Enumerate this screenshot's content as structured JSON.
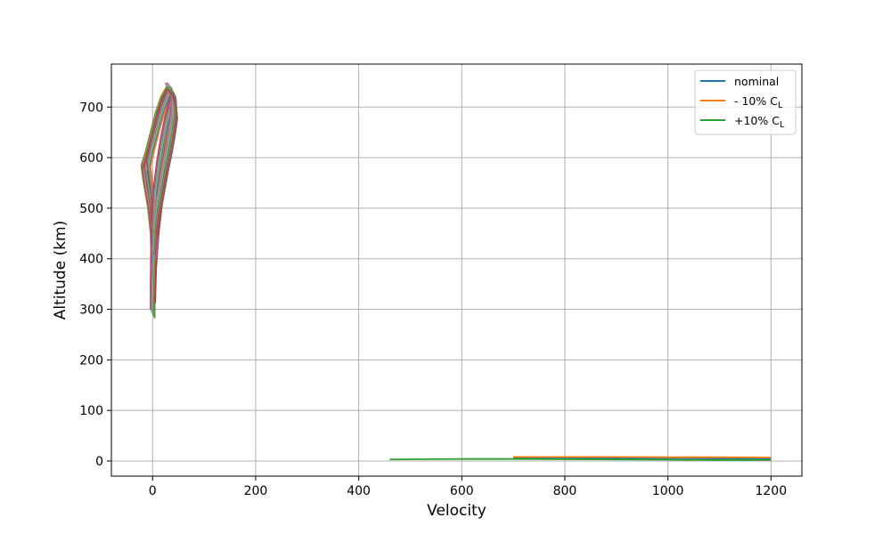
{
  "chart_data": {
    "type": "line",
    "xlabel": "Velocity",
    "ylabel": "Altitude (km)",
    "xlim": [
      -80,
      1260
    ],
    "ylim": [
      -30,
      785
    ],
    "xticks": [
      0,
      200,
      400,
      600,
      800,
      1000,
      1200
    ],
    "yticks": [
      0,
      100,
      200,
      300,
      400,
      500,
      600,
      700
    ],
    "grid": true,
    "legend_position": "top-right",
    "legend": [
      {
        "label": "nominal",
        "sub": "",
        "color": "#1f77b4"
      },
      {
        "label": "- 10% C",
        "sub": "L",
        "color": "#ff7f0e"
      },
      {
        "label": "+10% C",
        "sub": "L",
        "color": "#2ca02c"
      }
    ],
    "series": [
      {
        "name": "nominal",
        "color": "#1f77b4",
        "x": [
          700,
          800,
          900,
          1000,
          1100,
          1200
        ],
        "y": [
          6,
          6,
          5.5,
          5.5,
          5,
          5
        ]
      },
      {
        "name": "- 10% C_L",
        "color": "#ff7f0e",
        "x": [
          700,
          800,
          900,
          1000,
          1100,
          1200
        ],
        "y": [
          8,
          8,
          8,
          7.5,
          7.5,
          7
        ]
      },
      {
        "name": "+10% C_L",
        "color": "#2ca02c",
        "x": [
          460,
          500,
          600,
          700,
          800,
          900,
          1000,
          1100,
          1200
        ],
        "y": [
          3,
          3.5,
          4,
          4,
          3.5,
          3,
          2.5,
          2,
          2
        ]
      }
    ],
    "trajectory_cluster": {
      "colors": [
        "#1f77b4",
        "#ff7f0e",
        "#2ca02c",
        "#d62728",
        "#9467bd",
        "#8c564b",
        "#e377c2",
        "#7f7f7f",
        "#bcbd22",
        "#17becf"
      ],
      "curves": [
        {
          "x": [
            2,
            0,
            -5,
            -15,
            -18,
            -10,
            0,
            10,
            20,
            28
          ],
          "y": [
            400,
            450,
            500,
            560,
            585,
            610,
            650,
            690,
            720,
            735
          ]
        },
        {
          "x": [
            3,
            2,
            -2,
            -10,
            -14,
            -6,
            4,
            14,
            24,
            32
          ],
          "y": [
            430,
            470,
            510,
            565,
            590,
            620,
            660,
            700,
            728,
            742
          ]
        },
        {
          "x": [
            4,
            4,
            2,
            -4,
            -8,
            0,
            10,
            20,
            30,
            36
          ],
          "y": [
            450,
            480,
            520,
            570,
            600,
            635,
            675,
            710,
            735,
            745
          ]
        },
        {
          "x": [
            0,
            0,
            1,
            3,
            6,
            12,
            20,
            28,
            36,
            40
          ],
          "y": [
            300,
            350,
            420,
            480,
            540,
            590,
            640,
            680,
            710,
            730
          ]
        },
        {
          "x": [
            1,
            3,
            8,
            15,
            22,
            30,
            36,
            40,
            42,
            40
          ],
          "y": [
            330,
            400,
            470,
            530,
            580,
            625,
            665,
            700,
            725,
            740
          ]
        },
        {
          "x": [
            3,
            6,
            12,
            20,
            28,
            35,
            40,
            42,
            38,
            32
          ],
          "y": [
            420,
            470,
            520,
            570,
            615,
            655,
            690,
            718,
            740,
            748
          ]
        },
        {
          "x": [
            5,
            10,
            18,
            26,
            34,
            40,
            44,
            42,
            36,
            28
          ],
          "y": [
            460,
            500,
            545,
            590,
            630,
            665,
            695,
            720,
            740,
            748
          ]
        }
      ]
    }
  }
}
